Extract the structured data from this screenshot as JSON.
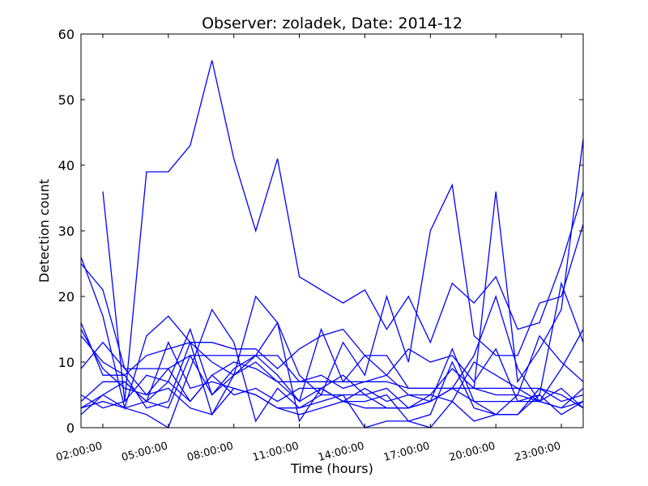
{
  "chart_data": {
    "type": "line",
    "title": "Observer: zoladek, Date: 2014-12",
    "xlabel": "Time (hours)",
    "ylabel": "Detection count",
    "ylim": [
      0,
      60
    ],
    "xlim_hours": [
      1,
      24
    ],
    "yticks": [
      0,
      10,
      20,
      30,
      40,
      50,
      60
    ],
    "xticks": [
      {
        "hour": 2,
        "label": "02:00:00"
      },
      {
        "hour": 5,
        "label": "05:00:00"
      },
      {
        "hour": 8,
        "label": "08:00:00"
      },
      {
        "hour": 11,
        "label": "11:00:00"
      },
      {
        "hour": 14,
        "label": "14:00:00"
      },
      {
        "hour": 17,
        "label": "17:00:00"
      },
      {
        "hour": 20,
        "label": "20:00:00"
      },
      {
        "hour": 23,
        "label": "23:00:00"
      }
    ],
    "line_color": "#0000ff",
    "grid": false,
    "series": [
      {
        "x": [
          2,
          3,
          4,
          5,
          6,
          7,
          8,
          9,
          10,
          11,
          12,
          13,
          14,
          15,
          16,
          17,
          18,
          19,
          20,
          21,
          22,
          23,
          24
        ],
        "values": [
          36,
          4,
          39,
          39,
          43,
          56,
          41,
          30,
          41,
          23,
          21,
          19,
          21,
          15,
          20,
          13,
          22,
          19,
          23,
          15,
          16,
          25,
          36
        ]
      },
      {
        "x": [
          1,
          2,
          3,
          4,
          5,
          6,
          7,
          8,
          9,
          10,
          11,
          12,
          13,
          14,
          15,
          16,
          17,
          18,
          19,
          20,
          21,
          22,
          23,
          24
        ],
        "values": [
          25,
          21,
          9,
          9,
          9,
          11,
          11,
          11,
          11,
          11,
          7,
          7,
          7,
          7,
          7,
          6,
          6,
          6,
          6,
          36,
          7,
          12,
          18,
          44
        ]
      },
      {
        "x": [
          1,
          2,
          3,
          4,
          5,
          6,
          7,
          8,
          9,
          10,
          11,
          12,
          13,
          14,
          15,
          16,
          17,
          18,
          19,
          20,
          21,
          22,
          23,
          24
        ],
        "values": [
          26,
          17,
          3,
          14,
          17,
          13,
          13,
          12,
          12,
          9,
          12,
          14,
          15,
          11,
          11,
          6,
          6,
          6,
          11,
          20,
          9,
          4,
          9,
          15
        ]
      },
      {
        "x": [
          1,
          2,
          3,
          4,
          5,
          6,
          7,
          8,
          9,
          10,
          11,
          12,
          13,
          14,
          15,
          16,
          17,
          18,
          19,
          20,
          21,
          22,
          23,
          24
        ],
        "values": [
          16,
          8,
          8,
          3,
          4,
          13,
          2,
          8,
          11,
          16,
          8,
          5,
          13,
          8,
          20,
          10,
          30,
          37,
          14,
          11,
          11,
          19,
          20,
          31
        ]
      },
      {
        "x": [
          1,
          2,
          3,
          4,
          5,
          6,
          7,
          8,
          9,
          10,
          11,
          12,
          13,
          14,
          15,
          16,
          17,
          18,
          19,
          20,
          21,
          22,
          23,
          24
        ],
        "values": [
          14,
          10,
          8,
          11,
          12,
          13,
          10,
          8,
          10,
          7,
          4,
          6,
          8,
          5,
          6,
          3,
          5,
          9,
          6,
          5,
          5,
          4,
          3,
          4
        ]
      },
      {
        "x": [
          1,
          2,
          3,
          4,
          5,
          6,
          7,
          8,
          9,
          10,
          11,
          12,
          13,
          14,
          15,
          16,
          17,
          18,
          19,
          20,
          21,
          22,
          23,
          24
        ],
        "values": [
          9,
          13,
          9,
          5,
          9,
          4,
          8,
          10,
          9,
          7,
          7,
          8,
          6,
          7,
          8,
          5,
          5,
          4,
          10,
          8,
          6,
          6,
          4,
          5
        ]
      },
      {
        "x": [
          1,
          2,
          3,
          4,
          5,
          6,
          7,
          8,
          9,
          10,
          11,
          12,
          13,
          14,
          15,
          16,
          17,
          18,
          19,
          20,
          21,
          22,
          23,
          24
        ],
        "values": [
          5,
          3,
          4,
          8,
          7,
          4,
          8,
          5,
          6,
          4,
          6,
          6,
          4,
          6,
          4,
          5,
          4,
          6,
          6,
          6,
          6,
          4,
          3,
          6
        ]
      },
      {
        "x": [
          1,
          2,
          3,
          4,
          5,
          6,
          7,
          8,
          9,
          10,
          11,
          12,
          13,
          14,
          15,
          16,
          17,
          18,
          19,
          20,
          21,
          22,
          23,
          24
        ],
        "values": [
          4,
          7,
          7,
          4,
          7,
          15,
          5,
          9,
          11,
          8,
          4,
          15,
          7,
          11,
          8,
          12,
          10,
          11,
          7,
          12,
          4,
          4,
          6,
          3
        ]
      },
      {
        "x": [
          1,
          2,
          3,
          4,
          5,
          6,
          7,
          8,
          9,
          10,
          11,
          12,
          13,
          14,
          15,
          16,
          17,
          18,
          19,
          20,
          21,
          22,
          23,
          24
        ],
        "values": [
          3,
          5,
          7,
          4,
          3,
          11,
          5,
          8,
          20,
          16,
          1,
          6,
          4,
          4,
          5,
          1,
          2,
          10,
          3,
          2,
          2,
          6,
          5,
          3
        ]
      },
      {
        "x": [
          1,
          2,
          3,
          4,
          5,
          6,
          7,
          8,
          9,
          10,
          11,
          12,
          13,
          14,
          15,
          16,
          17,
          18,
          19,
          20,
          21,
          22,
          23,
          24
        ],
        "values": [
          2,
          5,
          3,
          2,
          0,
          9,
          18,
          13,
          1,
          6,
          3,
          4,
          5,
          0,
          1,
          1,
          0,
          4,
          1,
          2,
          5,
          14,
          10,
          7
        ]
      },
      {
        "x": [
          1,
          2,
          3,
          4,
          5,
          6,
          7,
          8,
          9,
          10,
          11,
          12,
          13,
          14,
          15,
          16,
          17,
          18,
          19,
          20,
          21,
          22,
          23,
          24
        ],
        "values": [
          15,
          9,
          6,
          5,
          6,
          3,
          2,
          6,
          5,
          3,
          2,
          3,
          4,
          3,
          3,
          3,
          4,
          6,
          4,
          4,
          4,
          5,
          2,
          4
        ]
      },
      {
        "x": [
          1,
          2,
          3,
          4,
          5,
          6,
          7,
          8,
          9,
          10,
          11,
          12,
          13,
          14,
          15,
          16,
          17,
          18,
          19,
          20,
          21,
          22,
          23,
          24
        ],
        "values": [
          3,
          4,
          3,
          4,
          13,
          6,
          7,
          6,
          5,
          3,
          3,
          5,
          5,
          5,
          3,
          3,
          4,
          12,
          4,
          2,
          2,
          5,
          22,
          13
        ]
      }
    ]
  }
}
